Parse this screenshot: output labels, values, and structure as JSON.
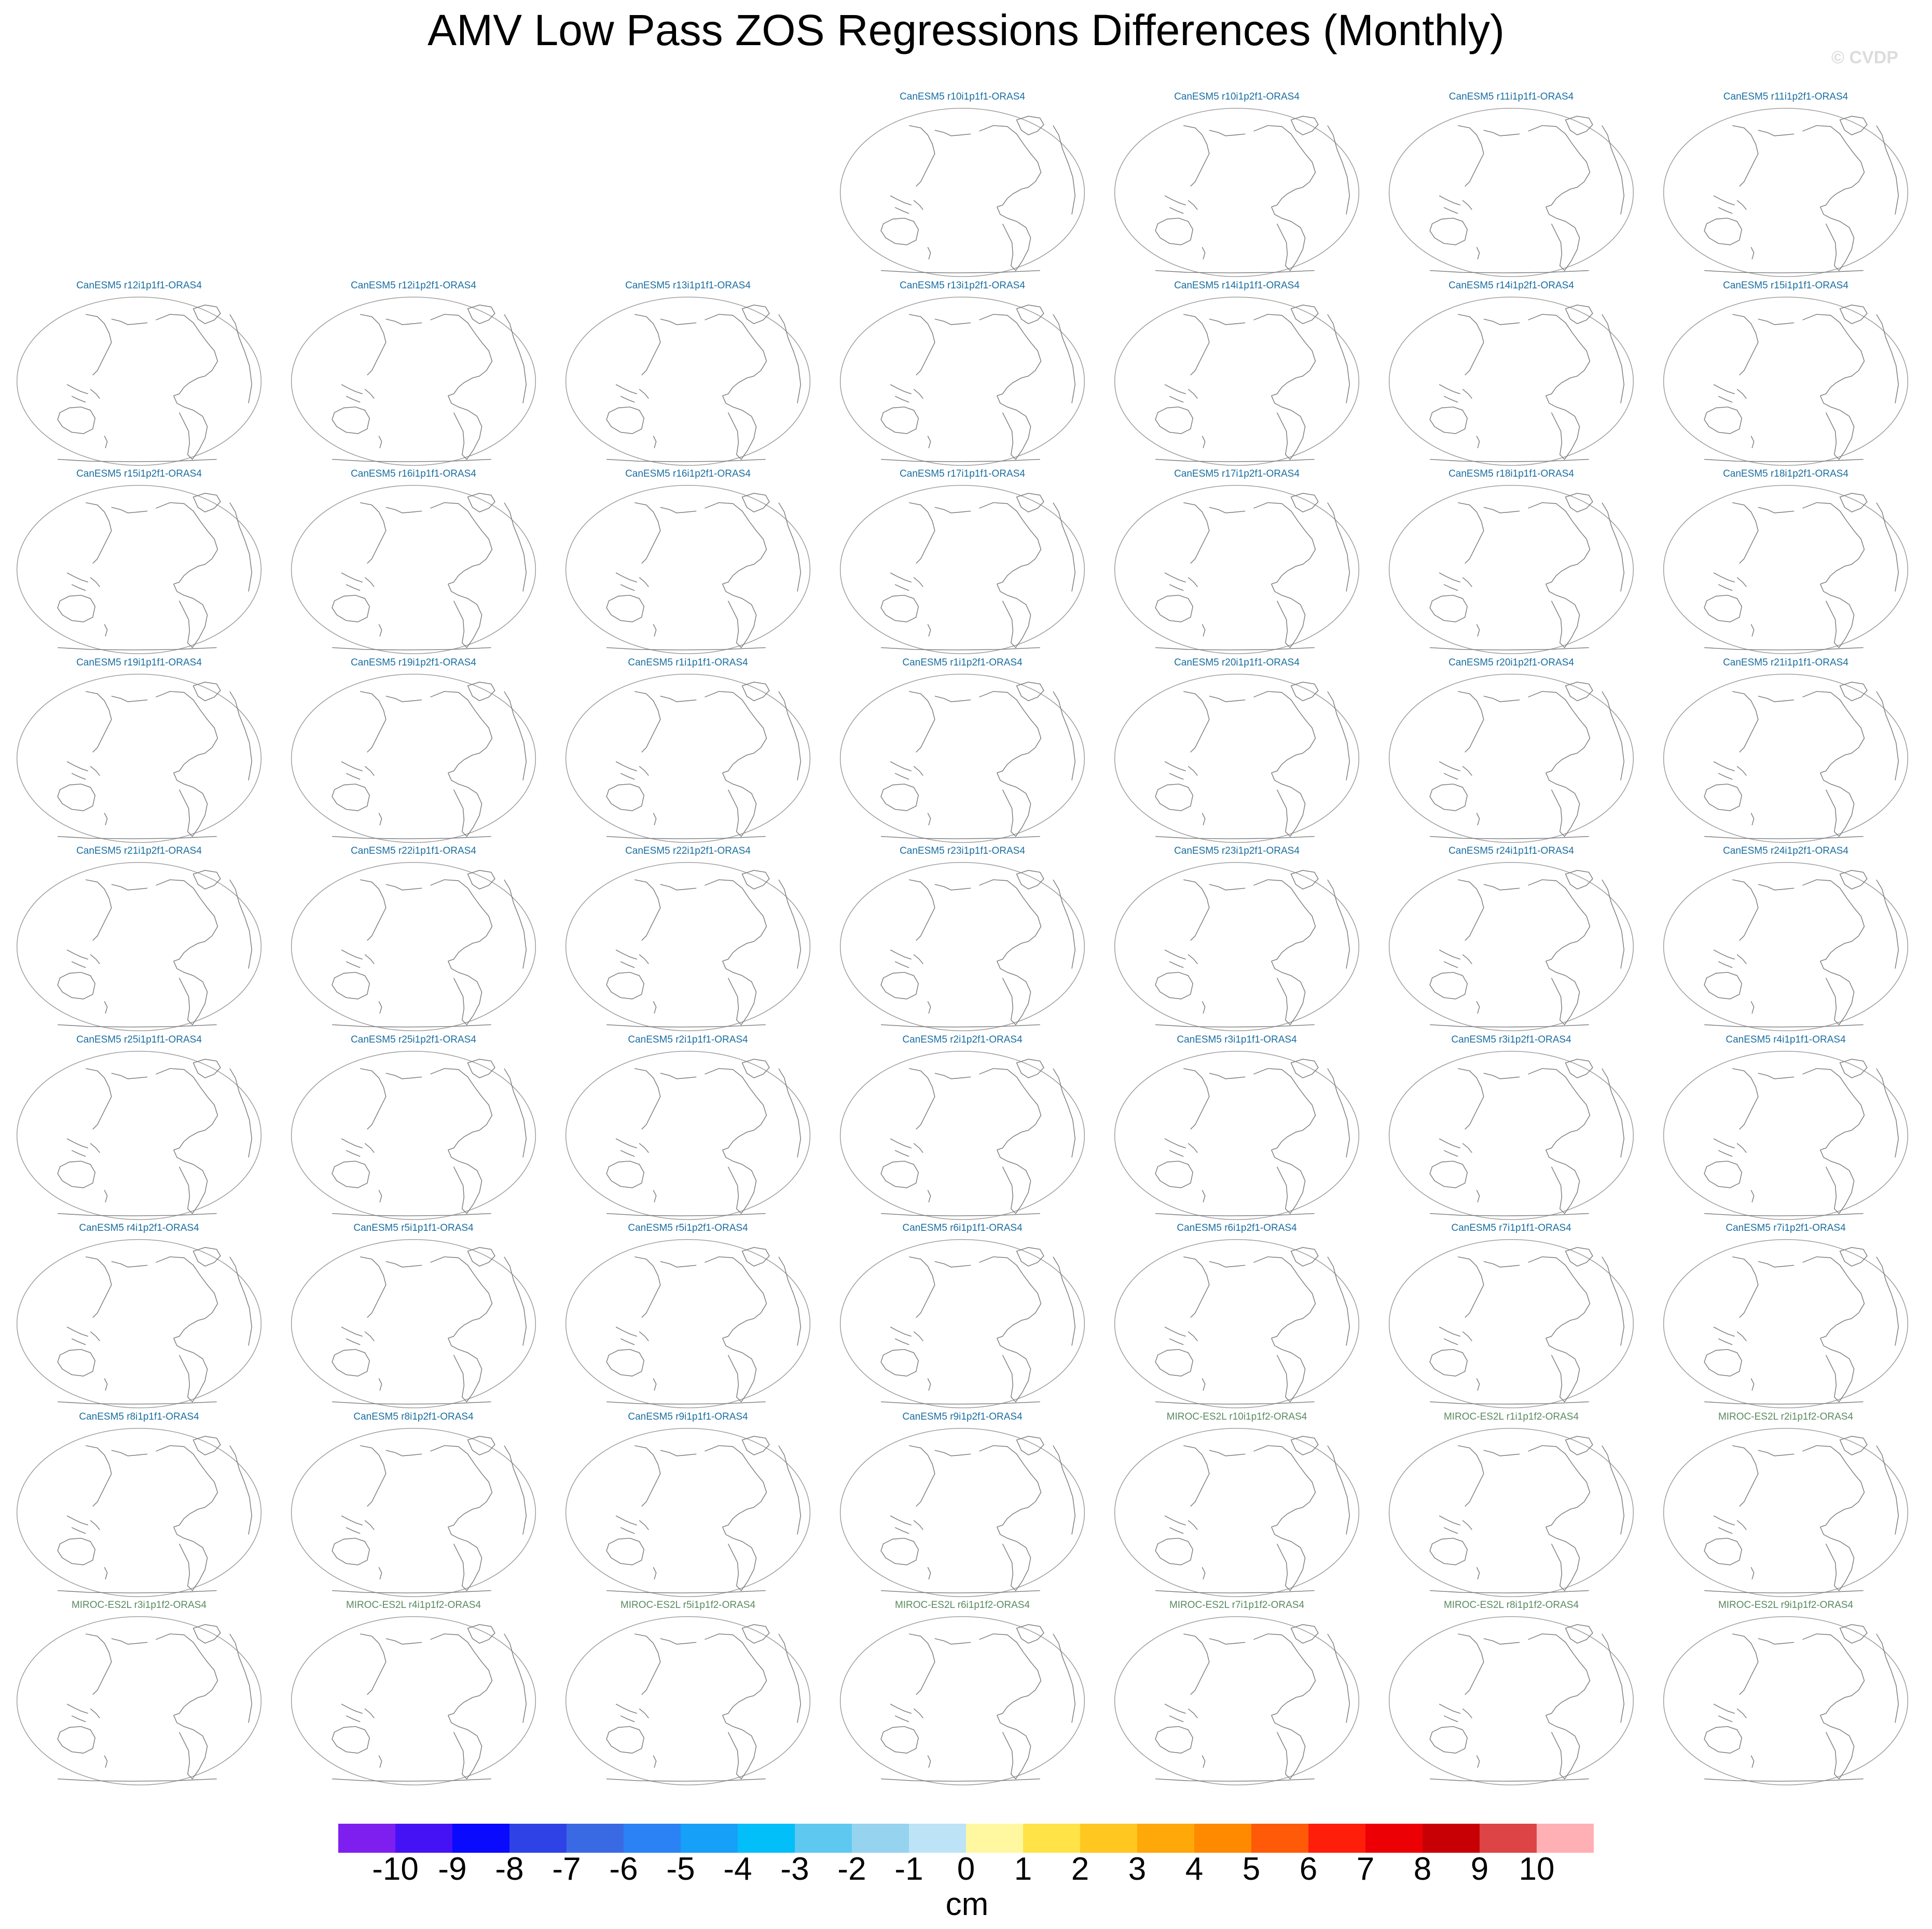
{
  "title": "AMV Low Pass ZOS Regressions Differences (Monthly)",
  "watermark": "© CVDP",
  "colors": {
    "canesm_title": "#1a6ea0",
    "miroc_title": "#5a8a60"
  },
  "panels": [
    {
      "label": "CanESM5 r10i1p1f1-ORAS4",
      "model": "canesm"
    },
    {
      "label": "CanESM5 r10i1p2f1-ORAS4",
      "model": "canesm"
    },
    {
      "label": "CanESM5 r11i1p1f1-ORAS4",
      "model": "canesm"
    },
    {
      "label": "CanESM5 r11i1p2f1-ORAS4",
      "model": "canesm"
    },
    {
      "label": "CanESM5 r12i1p1f1-ORAS4",
      "model": "canesm"
    },
    {
      "label": "CanESM5 r12i1p2f1-ORAS4",
      "model": "canesm"
    },
    {
      "label": "CanESM5 r13i1p1f1-ORAS4",
      "model": "canesm"
    },
    {
      "label": "CanESM5 r13i1p2f1-ORAS4",
      "model": "canesm"
    },
    {
      "label": "CanESM5 r14i1p1f1-ORAS4",
      "model": "canesm"
    },
    {
      "label": "CanESM5 r14i1p2f1-ORAS4",
      "model": "canesm"
    },
    {
      "label": "CanESM5 r15i1p1f1-ORAS4",
      "model": "canesm"
    },
    {
      "label": "CanESM5 r15i1p2f1-ORAS4",
      "model": "canesm"
    },
    {
      "label": "CanESM5 r16i1p1f1-ORAS4",
      "model": "canesm"
    },
    {
      "label": "CanESM5 r16i1p2f1-ORAS4",
      "model": "canesm"
    },
    {
      "label": "CanESM5 r17i1p1f1-ORAS4",
      "model": "canesm"
    },
    {
      "label": "CanESM5 r17i1p2f1-ORAS4",
      "model": "canesm"
    },
    {
      "label": "CanESM5 r18i1p1f1-ORAS4",
      "model": "canesm"
    },
    {
      "label": "CanESM5 r18i1p2f1-ORAS4",
      "model": "canesm"
    },
    {
      "label": "CanESM5 r19i1p1f1-ORAS4",
      "model": "canesm"
    },
    {
      "label": "CanESM5 r19i1p2f1-ORAS4",
      "model": "canesm"
    },
    {
      "label": "CanESM5 r1i1p1f1-ORAS4",
      "model": "canesm"
    },
    {
      "label": "CanESM5 r1i1p2f1-ORAS4",
      "model": "canesm"
    },
    {
      "label": "CanESM5 r20i1p1f1-ORAS4",
      "model": "canesm"
    },
    {
      "label": "CanESM5 r20i1p2f1-ORAS4",
      "model": "canesm"
    },
    {
      "label": "CanESM5 r21i1p1f1-ORAS4",
      "model": "canesm"
    },
    {
      "label": "CanESM5 r21i1p2f1-ORAS4",
      "model": "canesm"
    },
    {
      "label": "CanESM5 r22i1p1f1-ORAS4",
      "model": "canesm"
    },
    {
      "label": "CanESM5 r22i1p2f1-ORAS4",
      "model": "canesm"
    },
    {
      "label": "CanESM5 r23i1p1f1-ORAS4",
      "model": "canesm"
    },
    {
      "label": "CanESM5 r23i1p2f1-ORAS4",
      "model": "canesm"
    },
    {
      "label": "CanESM5 r24i1p1f1-ORAS4",
      "model": "canesm"
    },
    {
      "label": "CanESM5 r24i1p2f1-ORAS4",
      "model": "canesm"
    },
    {
      "label": "CanESM5 r25i1p1f1-ORAS4",
      "model": "canesm"
    },
    {
      "label": "CanESM5 r25i1p2f1-ORAS4",
      "model": "canesm"
    },
    {
      "label": "CanESM5 r2i1p1f1-ORAS4",
      "model": "canesm"
    },
    {
      "label": "CanESM5 r2i1p2f1-ORAS4",
      "model": "canesm"
    },
    {
      "label": "CanESM5 r3i1p1f1-ORAS4",
      "model": "canesm"
    },
    {
      "label": "CanESM5 r3i1p2f1-ORAS4",
      "model": "canesm"
    },
    {
      "label": "CanESM5 r4i1p1f1-ORAS4",
      "model": "canesm"
    },
    {
      "label": "CanESM5 r4i1p2f1-ORAS4",
      "model": "canesm"
    },
    {
      "label": "CanESM5 r5i1p1f1-ORAS4",
      "model": "canesm"
    },
    {
      "label": "CanESM5 r5i1p2f1-ORAS4",
      "model": "canesm"
    },
    {
      "label": "CanESM5 r6i1p1f1-ORAS4",
      "model": "canesm"
    },
    {
      "label": "CanESM5 r6i1p2f1-ORAS4",
      "model": "canesm"
    },
    {
      "label": "CanESM5 r7i1p1f1-ORAS4",
      "model": "canesm"
    },
    {
      "label": "CanESM5 r7i1p2f1-ORAS4",
      "model": "canesm"
    },
    {
      "label": "CanESM5 r8i1p1f1-ORAS4",
      "model": "canesm"
    },
    {
      "label": "CanESM5 r8i1p2f1-ORAS4",
      "model": "canesm"
    },
    {
      "label": "CanESM5 r9i1p1f1-ORAS4",
      "model": "canesm"
    },
    {
      "label": "CanESM5 r9i1p2f1-ORAS4",
      "model": "canesm"
    },
    {
      "label": "MIROC-ES2L r10i1p1f2-ORAS4",
      "model": "miroc"
    },
    {
      "label": "MIROC-ES2L r1i1p1f2-ORAS4",
      "model": "miroc"
    },
    {
      "label": "MIROC-ES2L r2i1p1f2-ORAS4",
      "model": "miroc"
    },
    {
      "label": "MIROC-ES2L r3i1p1f2-ORAS4",
      "model": "miroc"
    },
    {
      "label": "MIROC-ES2L r4i1p1f2-ORAS4",
      "model": "miroc"
    },
    {
      "label": "MIROC-ES2L r5i1p1f2-ORAS4",
      "model": "miroc"
    },
    {
      "label": "MIROC-ES2L r6i1p1f2-ORAS4",
      "model": "miroc"
    },
    {
      "label": "MIROC-ES2L r7i1p1f2-ORAS4",
      "model": "miroc"
    },
    {
      "label": "MIROC-ES2L r8i1p1f2-ORAS4",
      "model": "miroc"
    },
    {
      "label": "MIROC-ES2L r9i1p1f2-ORAS4",
      "model": "miroc"
    }
  ],
  "colorbar": {
    "units": "cm",
    "tick_labels": [
      "-10",
      "-9",
      "-8",
      "-7",
      "-6",
      "-5",
      "-4",
      "-3",
      "-2",
      "-1",
      "0",
      "1",
      "2",
      "3",
      "4",
      "5",
      "6",
      "7",
      "8",
      "9",
      "10"
    ],
    "colors": [
      "#7f1fef",
      "#4512f5",
      "#0a0aff",
      "#2f42e6",
      "#3a6ae3",
      "#2a82f5",
      "#16a0f7",
      "#02bef9",
      "#5ec8f0",
      "#96d3ee",
      "#bde3f7",
      "#fff8a0",
      "#ffe347",
      "#ffc71f",
      "#ffa80a",
      "#ff8a00",
      "#ff5a08",
      "#ff1e0a",
      "#ec0005",
      "#c80005",
      "#dc4446",
      "#ffb0b4"
    ]
  }
}
